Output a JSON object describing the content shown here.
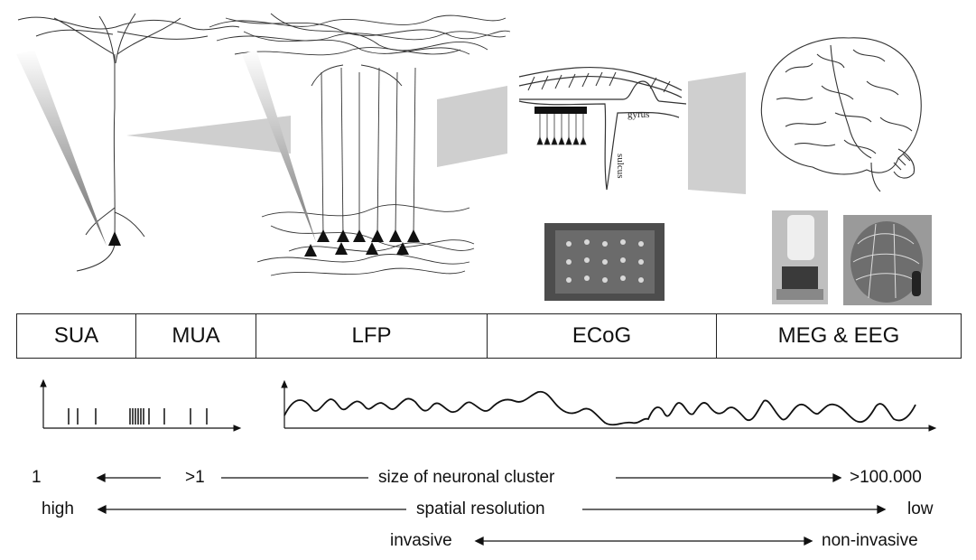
{
  "bands": [
    {
      "label": "SUA"
    },
    {
      "label": "MUA"
    },
    {
      "label": "LFP"
    },
    {
      "label": "ECoG"
    },
    {
      "label": "MEG & EEG"
    }
  ],
  "ecog_labels": {
    "gyrus": "gyrus",
    "sulcus": "sulcus"
  },
  "scales": {
    "cluster": {
      "left": "1",
      "mid_left": ">1",
      "center": "size of neuronal cluster",
      "right": ">100.000"
    },
    "resolution": {
      "left": "high",
      "center": "spatial resolution",
      "right": "low"
    },
    "invasiveness": {
      "left": "invasive",
      "right": "non-invasive"
    }
  },
  "colors": {
    "line": "#111111",
    "wedge": "#c8c8c8",
    "photo": "#5a5a5a"
  }
}
